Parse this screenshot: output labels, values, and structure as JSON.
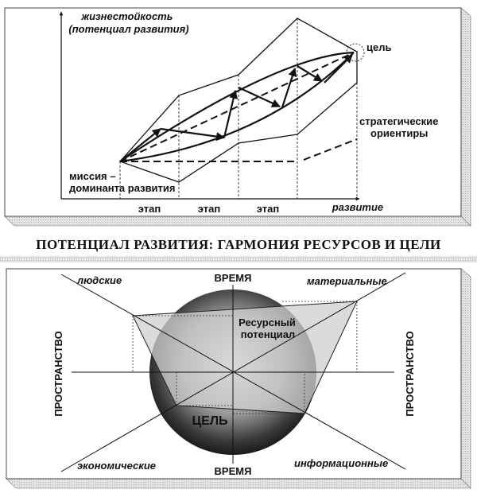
{
  "top_panel": {
    "y_axis_label_line1": "жизнестойкость",
    "y_axis_label_line2": "(потенциал развития)",
    "x_axis_label": "развитие",
    "stages": [
      "этап",
      "этап",
      "этап"
    ],
    "goal_label": "цель",
    "strategic_label_line1": "стратегические",
    "strategic_label_line2": "ориентиры",
    "mission_label_line1": "миссия –",
    "mission_label_line2": "доминанта развития"
  },
  "title": "ПОТЕНЦИАЛ РАЗВИТИЯ: ГАРМОНИЯ РЕСУРСОВ И ЦЕЛИ",
  "bottom_panel": {
    "time_top": "ВРЕМЯ",
    "time_bottom": "ВРЕМЯ",
    "space_left": "ПРОСТРАНСТВО",
    "space_right": "ПРОСТРАНСТВО",
    "axis_people": "людские",
    "axis_material": "материальные",
    "axis_economic": "экономические",
    "axis_information": "информационные",
    "resource_line1": "Ресурсный",
    "resource_line2": "потенциал",
    "goal": "ЦЕЛЬ"
  }
}
